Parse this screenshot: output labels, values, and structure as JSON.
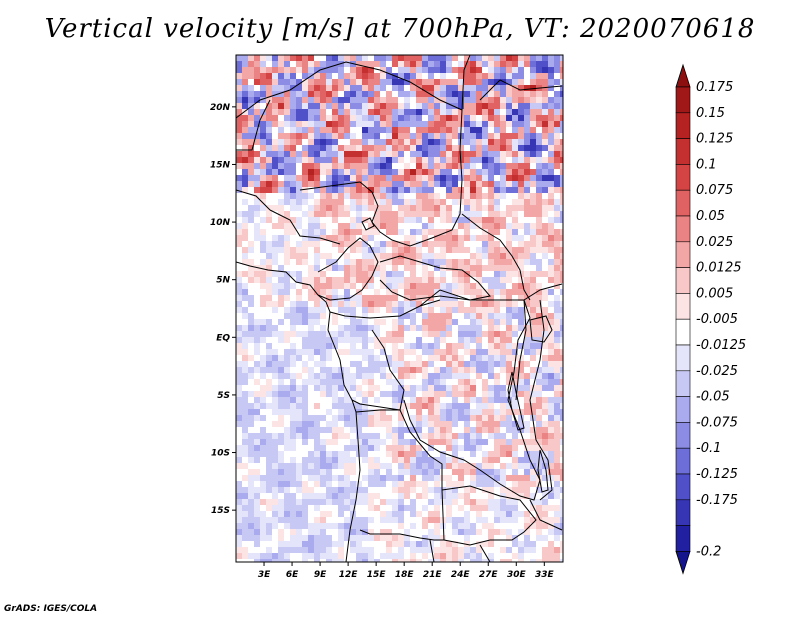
{
  "title": "Vertical velocity [m/s] at 700hPa, VT: 2020070618",
  "credit": "GrADS: IGES/COLA",
  "map": {
    "variable": "Vertical velocity",
    "units": "m/s",
    "level": "700hPa",
    "valid_time": "2020070618",
    "lat_range": [
      -19.5,
      24.5
    ],
    "lon_range": [
      0,
      35
    ],
    "lat_ticks": [
      {
        "lat": 20,
        "label": "20N"
      },
      {
        "lat": 15,
        "label": "15N"
      },
      {
        "lat": 10,
        "label": "10N"
      },
      {
        "lat": 5,
        "label": "5N"
      },
      {
        "lat": 0,
        "label": "EQ"
      },
      {
        "lat": -5,
        "label": "5S"
      },
      {
        "lat": -10,
        "label": "10S"
      },
      {
        "lat": -15,
        "label": "15S"
      }
    ],
    "lon_ticks": [
      {
        "lon": 3,
        "label": "3E"
      },
      {
        "lon": 6,
        "label": "6E"
      },
      {
        "lon": 9,
        "label": "9E"
      },
      {
        "lon": 12,
        "label": "12E"
      },
      {
        "lon": 15,
        "label": "15E"
      },
      {
        "lon": 18,
        "label": "18E"
      },
      {
        "lon": 21,
        "label": "21E"
      },
      {
        "lon": 24,
        "label": "24E"
      },
      {
        "lon": 27,
        "label": "27E"
      },
      {
        "lon": 30,
        "label": "30E"
      },
      {
        "lon": 33,
        "label": "33E"
      }
    ]
  },
  "colorbar": {
    "levels": [
      {
        "label": "0.175",
        "color": "#a01818"
      },
      {
        "label": "0.15",
        "color": "#b42222"
      },
      {
        "label": "0.125",
        "color": "#c43030"
      },
      {
        "label": "0.1",
        "color": "#d44444"
      },
      {
        "label": "0.075",
        "color": "#e06262"
      },
      {
        "label": "0.05",
        "color": "#ea8484"
      },
      {
        "label": "0.025",
        "color": "#f3a6a6"
      },
      {
        "label": "0.0125",
        "color": "#f8c8c8"
      },
      {
        "label": "0.005",
        "color": "#fce4e4"
      },
      {
        "label": "-0.005",
        "color": "#ffffff"
      },
      {
        "label": "-0.0125",
        "color": "#e4e4fa"
      },
      {
        "label": "-0.025",
        "color": "#c8c8f4"
      },
      {
        "label": "-0.05",
        "color": "#aaaaee"
      },
      {
        "label": "-0.075",
        "color": "#8c8ce4"
      },
      {
        "label": "-0.1",
        "color": "#6e6ed8"
      },
      {
        "label": "-0.125",
        "color": "#5050c8"
      },
      {
        "label": "-0.175",
        "color": "#3636b4"
      },
      {
        "label": "-0.2",
        "color": "#2020a0"
      }
    ],
    "top_cap_color": "#8c1010",
    "bottom_cap_color": "#14148c"
  }
}
